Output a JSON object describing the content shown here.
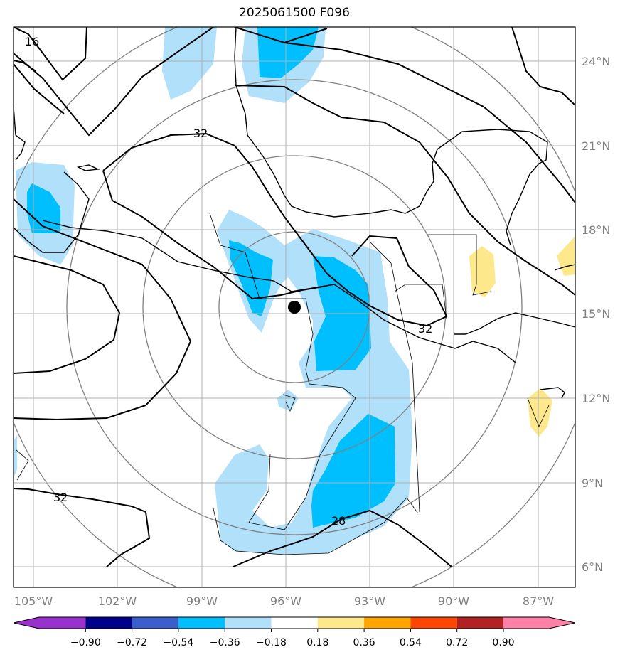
{
  "title": "2025061500 F096",
  "map": {
    "lon_labels": [
      "105°W",
      "102°W",
      "99°W",
      "96°W",
      "93°W",
      "90°W",
      "87°W"
    ],
    "lat_labels": [
      "24°N",
      "21°N",
      "18°N",
      "15°N",
      "12°N",
      "9°N",
      "6°N"
    ],
    "label_color": "#808080",
    "contour_labels": [
      "16",
      "32",
      "32",
      "32",
      "28"
    ],
    "center_marker": "storm-center-dot"
  },
  "colorbar": {
    "ticks": [
      "−0.90",
      "−0.72",
      "−0.54",
      "−0.36",
      "−0.18",
      "0.18",
      "0.36",
      "0.54",
      "0.72",
      "0.90"
    ],
    "colors": [
      "#9932cc",
      "#00008b",
      "#3a5fcd",
      "#00bfff",
      "#b0e0fa",
      "#ffffff",
      "#fde98b",
      "#ffa500",
      "#ff4500",
      "#b22222",
      "#ff81a8"
    ]
  }
}
